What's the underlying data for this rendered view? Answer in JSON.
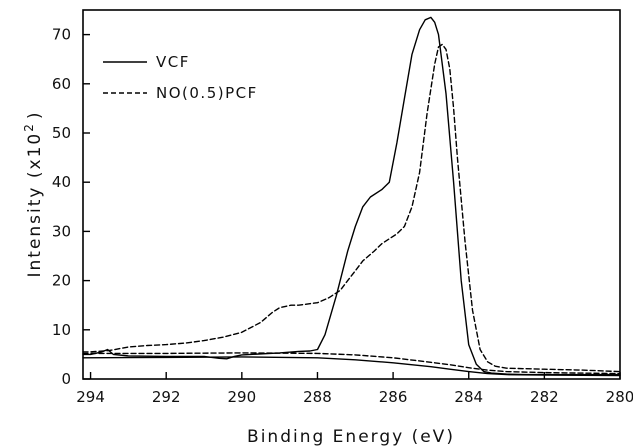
{
  "chart_data": {
    "type": "line",
    "title": "",
    "xlabel": "Binding Energy (eV)",
    "ylabel": "Intensity (x10",
    "ylabel_sup": "2",
    "ylabel_close": ")",
    "xlim": [
      294.2,
      280
    ],
    "ylim": [
      0,
      75
    ],
    "x_reversed": true,
    "grid": false,
    "legend_position": "top-left",
    "x_ticks": [
      294,
      292,
      290,
      288,
      286,
      284,
      282,
      280
    ],
    "y_ticks": [
      0,
      10,
      20,
      30,
      40,
      50,
      60,
      70
    ],
    "series": [
      {
        "name": "VCF",
        "style": "solid",
        "x": [
          294.2,
          294.0,
          293.7,
          293.55,
          293.4,
          293.0,
          292.0,
          291.0,
          290.6,
          290.4,
          290.2,
          290.0,
          289.0,
          288.5,
          288.2,
          288.0,
          287.8,
          287.5,
          287.2,
          287.0,
          286.8,
          286.6,
          286.3,
          286.1,
          285.9,
          285.7,
          285.5,
          285.3,
          285.15,
          285.0,
          284.9,
          284.8,
          284.6,
          284.4,
          284.2,
          284.0,
          283.8,
          283.6,
          283.4,
          283.2,
          283.0,
          282.5,
          282.0,
          281.0,
          280.0
        ],
        "y": [
          5.0,
          5.0,
          5.5,
          6.0,
          5.0,
          4.7,
          4.6,
          4.6,
          4.2,
          4.1,
          4.6,
          4.9,
          5.3,
          5.6,
          5.7,
          6.0,
          9.0,
          17.0,
          26.0,
          31.0,
          35.0,
          37.0,
          38.5,
          40.0,
          48.0,
          57.0,
          66.0,
          71.0,
          73.0,
          73.5,
          72.5,
          70.0,
          58.0,
          40.0,
          20.0,
          7.0,
          3.0,
          1.5,
          1.2,
          1.1,
          1.0,
          0.9,
          0.9,
          0.9,
          0.9
        ]
      },
      {
        "name": "NO(0.5)PCF",
        "style": "dashed",
        "x": [
          294.2,
          294.0,
          293.5,
          293.0,
          292.5,
          292.0,
          291.5,
          291.0,
          290.5,
          290.0,
          289.5,
          289.2,
          289.0,
          288.7,
          288.5,
          288.2,
          288.0,
          287.7,
          287.4,
          287.2,
          287.0,
          286.8,
          286.5,
          286.3,
          286.1,
          285.9,
          285.7,
          285.5,
          285.3,
          285.1,
          284.9,
          284.8,
          284.7,
          284.6,
          284.5,
          284.4,
          284.3,
          284.1,
          283.9,
          283.7,
          283.5,
          283.3,
          283.0,
          282.5,
          282.0,
          281.0,
          280.0
        ],
        "y": [
          5.5,
          5.5,
          5.8,
          6.5,
          6.8,
          7.0,
          7.3,
          7.8,
          8.5,
          9.5,
          11.5,
          13.5,
          14.5,
          15.0,
          15.0,
          15.3,
          15.5,
          16.5,
          18.0,
          20.0,
          22.0,
          24.0,
          26.0,
          27.5,
          28.5,
          29.5,
          31.0,
          35.0,
          42.0,
          54.0,
          64.0,
          67.5,
          68.0,
          67.0,
          63.0,
          55.0,
          45.0,
          28.0,
          14.0,
          6.0,
          3.5,
          2.6,
          2.2,
          2.1,
          2.0,
          1.8,
          1.5
        ]
      },
      {
        "name": "",
        "style": "solid",
        "role": "baseline",
        "x": [
          294.2,
          292.0,
          290.0,
          288.0,
          287.0,
          286.0,
          285.0,
          284.5,
          284.0,
          283.5,
          283.0,
          282.0,
          280.0
        ],
        "y": [
          4.3,
          4.4,
          4.5,
          4.3,
          3.9,
          3.3,
          2.5,
          2.0,
          1.5,
          1.1,
          0.9,
          0.8,
          0.7
        ]
      },
      {
        "name": "",
        "style": "dashed",
        "role": "baseline",
        "x": [
          294.2,
          292.0,
          290.0,
          288.0,
          287.0,
          286.0,
          285.0,
          284.5,
          284.0,
          283.5,
          283.0,
          282.0,
          281.0,
          280.0
        ],
        "y": [
          5.2,
          5.2,
          5.3,
          5.2,
          4.9,
          4.3,
          3.4,
          2.9,
          2.3,
          1.8,
          1.5,
          1.3,
          1.2,
          1.1
        ]
      }
    ]
  }
}
